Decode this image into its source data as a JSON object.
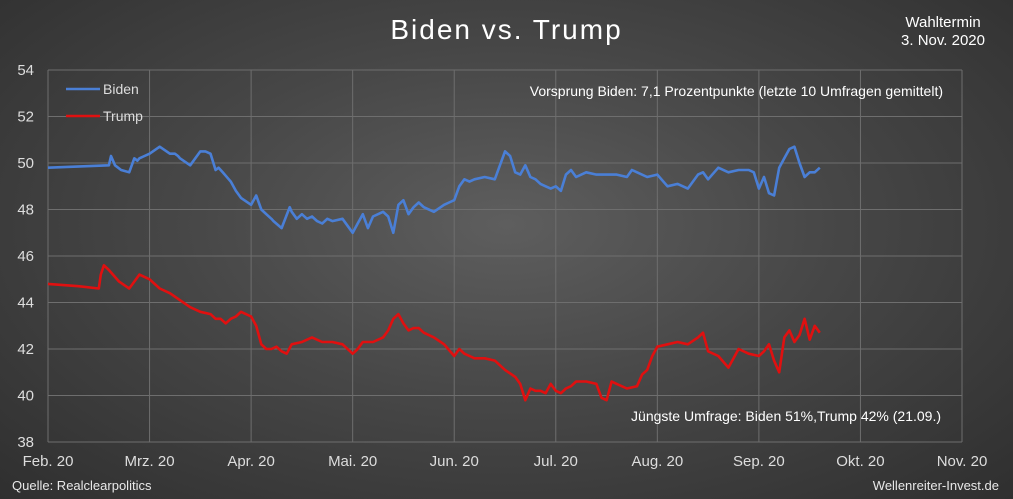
{
  "chart_data": {
    "type": "line",
    "title": "Biden vs. Trump",
    "election_label": "Wahltermin",
    "election_date": "3. Nov. 2020",
    "annotation_top": "Vorsprung Biden: 7,1 Prozentpunkte (letzte 10 Umfragen gemittelt)",
    "annotation_bottom": "Jüngste Umfrage: Biden 51%,Trump 42% (21.09.)",
    "source": "Quelle: Realclearpolitics",
    "credit": "Wellenreiter-Invest.de",
    "x_ticks": [
      "Feb. 20",
      "Mrz. 20",
      "Apr. 20",
      "Mai. 20",
      "Jun. 20",
      "Jul. 20",
      "Aug. 20",
      "Sep. 20",
      "Okt. 20",
      "Nov. 20"
    ],
    "xlim": [
      0,
      9
    ],
    "ylim": [
      38,
      54
    ],
    "y_ticks": [
      38,
      40,
      42,
      44,
      46,
      48,
      50,
      52,
      54
    ],
    "grid": true,
    "legend_position": "top-left",
    "series": [
      {
        "name": "Biden",
        "color": "#4a7fd6",
        "x": [
          0,
          0.6,
          0.62,
          0.66,
          0.72,
          0.8,
          0.85,
          0.88,
          0.9,
          0.95,
          1.0,
          1.1,
          1.2,
          1.25,
          1.28,
          1.3,
          1.4,
          1.5,
          1.55,
          1.6,
          1.65,
          1.68,
          1.72,
          1.78,
          1.8,
          1.85,
          1.9,
          2.0,
          2.05,
          2.1,
          2.15,
          2.2,
          2.22,
          2.3,
          2.38,
          2.4,
          2.45,
          2.5,
          2.55,
          2.6,
          2.65,
          2.7,
          2.75,
          2.8,
          2.9,
          3.0,
          3.05,
          3.1,
          3.15,
          3.2,
          3.3,
          3.35,
          3.4,
          3.45,
          3.5,
          3.55,
          3.6,
          3.65,
          3.7,
          3.8,
          3.9,
          3.95,
          4.0,
          4.05,
          4.1,
          4.15,
          4.2,
          4.3,
          4.4,
          4.5,
          4.55,
          4.6,
          4.65,
          4.7,
          4.75,
          4.8,
          4.85,
          4.9,
          4.95,
          5.0,
          5.05,
          5.1,
          5.15,
          5.2,
          5.3,
          5.4,
          5.5,
          5.6,
          5.7,
          5.75,
          5.8,
          5.9,
          6.0,
          6.1,
          6.2,
          6.3,
          6.4,
          6.45,
          6.5,
          6.6,
          6.7,
          6.8,
          6.9,
          6.95,
          7.0,
          7.05,
          7.1,
          7.15,
          7.2,
          7.25,
          7.3,
          7.35,
          7.4,
          7.45,
          7.5,
          7.55,
          7.6
        ],
        "values": [
          49.8,
          49.9,
          50.3,
          49.9,
          49.7,
          49.6,
          50.2,
          50.1,
          50.2,
          50.3,
          50.4,
          50.7,
          50.4,
          50.4,
          50.3,
          50.2,
          49.9,
          50.5,
          50.5,
          50.4,
          49.7,
          49.8,
          49.6,
          49.3,
          49.2,
          48.8,
          48.5,
          48.2,
          48.6,
          48.0,
          47.8,
          47.6,
          47.5,
          47.2,
          48.1,
          47.9,
          47.6,
          47.8,
          47.6,
          47.7,
          47.5,
          47.4,
          47.6,
          47.5,
          47.6,
          47.0,
          47.4,
          47.8,
          47.2,
          47.7,
          47.9,
          47.7,
          47.0,
          48.2,
          48.4,
          47.8,
          48.1,
          48.3,
          48.1,
          47.9,
          48.2,
          48.3,
          48.4,
          49.0,
          49.3,
          49.2,
          49.3,
          49.4,
          49.3,
          50.5,
          50.3,
          49.6,
          49.5,
          49.9,
          49.4,
          49.3,
          49.1,
          49.0,
          48.9,
          49.0,
          48.8,
          49.5,
          49.7,
          49.4,
          49.6,
          49.5,
          49.5,
          49.5,
          49.4,
          49.7,
          49.6,
          49.4,
          49.5,
          49.0,
          49.1,
          48.9,
          49.5,
          49.6,
          49.3,
          49.8,
          49.6,
          49.7,
          49.7,
          49.6,
          48.9,
          49.4,
          48.7,
          48.6,
          49.8,
          50.2,
          50.6,
          50.7,
          50.0,
          49.4,
          49.6,
          49.6,
          49.8
        ]
      },
      {
        "name": "Trump",
        "color": "#e01010",
        "x": [
          0,
          0.3,
          0.5,
          0.52,
          0.55,
          0.6,
          0.7,
          0.8,
          0.85,
          0.9,
          1.0,
          1.1,
          1.2,
          1.3,
          1.4,
          1.5,
          1.6,
          1.65,
          1.7,
          1.75,
          1.8,
          1.85,
          1.9,
          2.0,
          2.05,
          2.1,
          2.15,
          2.2,
          2.25,
          2.3,
          2.35,
          2.4,
          2.5,
          2.55,
          2.6,
          2.7,
          2.8,
          2.9,
          3.0,
          3.05,
          3.1,
          3.2,
          3.3,
          3.35,
          3.4,
          3.45,
          3.5,
          3.55,
          3.6,
          3.65,
          3.7,
          3.8,
          3.9,
          4.0,
          4.05,
          4.1,
          4.15,
          4.2,
          4.3,
          4.4,
          4.5,
          4.6,
          4.65,
          4.7,
          4.75,
          4.8,
          4.85,
          4.9,
          4.95,
          5.0,
          5.05,
          5.1,
          5.15,
          5.2,
          5.3,
          5.4,
          5.45,
          5.5,
          5.55,
          5.6,
          5.7,
          5.8,
          5.85,
          5.9,
          5.95,
          6.0,
          6.1,
          6.2,
          6.3,
          6.4,
          6.45,
          6.5,
          6.6,
          6.7,
          6.8,
          6.9,
          7.0,
          7.05,
          7.1,
          7.15,
          7.2,
          7.25,
          7.3,
          7.35,
          7.4,
          7.45,
          7.5,
          7.55,
          7.6
        ],
        "values": [
          44.8,
          44.7,
          44.6,
          45.2,
          45.6,
          45.4,
          44.9,
          44.6,
          44.9,
          45.2,
          45.0,
          44.6,
          44.4,
          44.1,
          43.8,
          43.6,
          43.5,
          43.3,
          43.3,
          43.1,
          43.3,
          43.4,
          43.6,
          43.4,
          43.0,
          42.2,
          42.0,
          42.0,
          42.1,
          41.9,
          41.8,
          42.2,
          42.3,
          42.4,
          42.5,
          42.3,
          42.3,
          42.2,
          41.8,
          42.0,
          42.3,
          42.3,
          42.5,
          42.8,
          43.3,
          43.5,
          43.1,
          42.8,
          42.9,
          42.9,
          42.7,
          42.5,
          42.2,
          41.7,
          42.0,
          41.8,
          41.7,
          41.6,
          41.6,
          41.5,
          41.1,
          40.8,
          40.5,
          39.8,
          40.3,
          40.2,
          40.2,
          40.1,
          40.5,
          40.2,
          40.1,
          40.3,
          40.4,
          40.6,
          40.6,
          40.5,
          39.9,
          39.8,
          40.6,
          40.5,
          40.3,
          40.4,
          40.9,
          41.1,
          41.7,
          42.1,
          42.2,
          42.3,
          42.2,
          42.5,
          42.7,
          41.9,
          41.7,
          41.2,
          42.0,
          41.8,
          41.7,
          41.9,
          42.2,
          41.5,
          41.0,
          42.5,
          42.8,
          42.3,
          42.6,
          43.3,
          42.4,
          43.0,
          42.7
        ]
      }
    ]
  }
}
